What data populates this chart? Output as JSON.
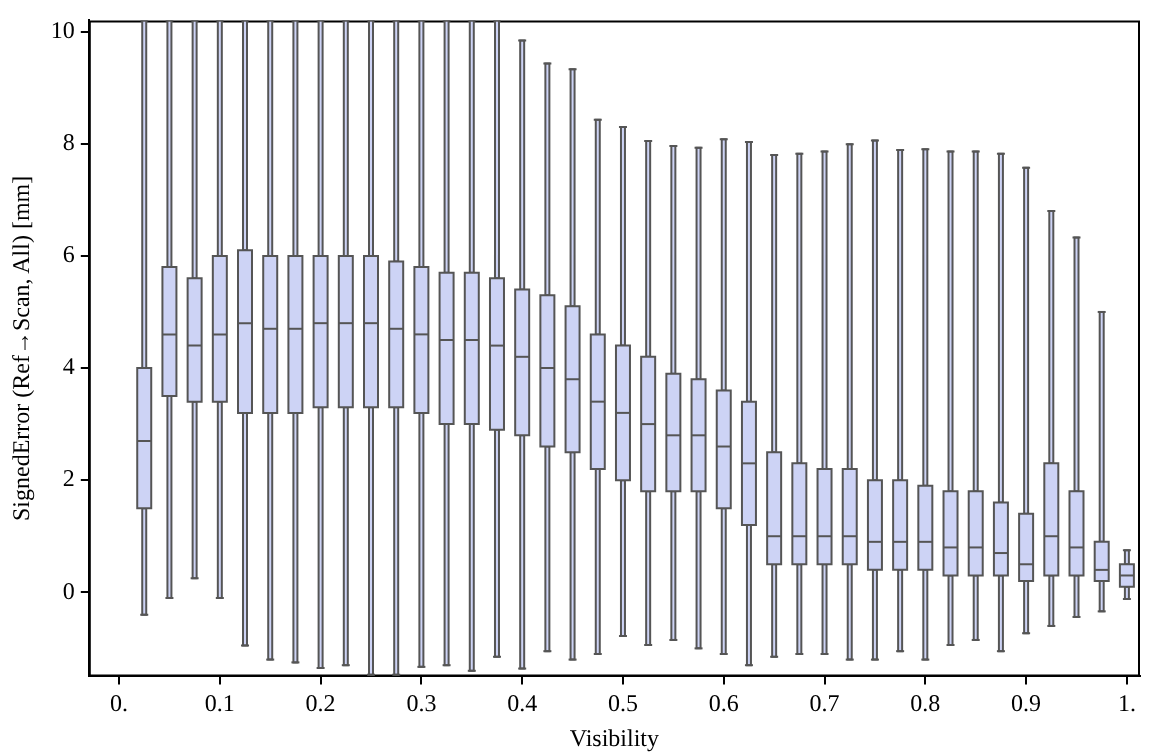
{
  "chart_data": {
    "type": "box",
    "xlabel": "Visibility",
    "ylabel": "SignedError (Ref→Scan, All) [mm]",
    "color": "#cdd3f5",
    "x": [
      0.025,
      0.05,
      0.075,
      0.1,
      0.125,
      0.15,
      0.175,
      0.2,
      0.225,
      0.25,
      0.275,
      0.3,
      0.325,
      0.35,
      0.375,
      0.4,
      0.425,
      0.45,
      0.475,
      0.5,
      0.525,
      0.55,
      0.575,
      0.6,
      0.625,
      0.65,
      0.675,
      0.7,
      0.725,
      0.75,
      0.775,
      0.8,
      0.825,
      0.85,
      0.875,
      0.9,
      0.925,
      0.95,
      0.975,
      1.0
    ],
    "boxes": [
      {
        "low": -0.4,
        "q1": 1.5,
        "median": 2.7,
        "q3": 4.0,
        "high": 10.2
      },
      {
        "low": -0.1,
        "q1": 3.5,
        "median": 4.6,
        "q3": 5.8,
        "high": 10.2
      },
      {
        "low": 0.25,
        "q1": 3.4,
        "median": 4.4,
        "q3": 5.6,
        "high": 10.2
      },
      {
        "low": -0.1,
        "q1": 3.4,
        "median": 4.6,
        "q3": 6.0,
        "high": 10.2
      },
      {
        "low": -0.95,
        "q1": 3.2,
        "median": 4.8,
        "q3": 6.1,
        "high": 10.2
      },
      {
        "low": -1.2,
        "q1": 3.2,
        "median": 4.7,
        "q3": 6.0,
        "high": 10.2
      },
      {
        "low": -1.25,
        "q1": 3.2,
        "median": 4.7,
        "q3": 6.0,
        "high": 10.2
      },
      {
        "low": -1.35,
        "q1": 3.3,
        "median": 4.8,
        "q3": 6.0,
        "high": 10.2
      },
      {
        "low": -1.3,
        "q1": 3.3,
        "median": 4.8,
        "q3": 6.0,
        "high": 10.2
      },
      {
        "low": -1.47,
        "q1": 3.3,
        "median": 4.8,
        "q3": 6.0,
        "high": 10.2
      },
      {
        "low": -1.47,
        "q1": 3.3,
        "median": 4.7,
        "q3": 5.9,
        "high": 10.2
      },
      {
        "low": -1.33,
        "q1": 3.2,
        "median": 4.6,
        "q3": 5.8,
        "high": 10.2
      },
      {
        "low": -1.3,
        "q1": 3.0,
        "median": 4.5,
        "q3": 5.7,
        "high": 10.2
      },
      {
        "low": -1.4,
        "q1": 3.0,
        "median": 4.5,
        "q3": 5.7,
        "high": 10.2
      },
      {
        "low": -1.15,
        "q1": 2.9,
        "median": 4.4,
        "q3": 5.6,
        "high": 10.2
      },
      {
        "low": -1.36,
        "q1": 2.8,
        "median": 4.2,
        "q3": 5.4,
        "high": 9.84
      },
      {
        "low": -1.05,
        "q1": 2.6,
        "median": 4.0,
        "q3": 5.3,
        "high": 9.43
      },
      {
        "low": -1.2,
        "q1": 2.5,
        "median": 3.8,
        "q3": 5.1,
        "high": 9.33
      },
      {
        "low": -1.1,
        "q1": 2.2,
        "median": 3.4,
        "q3": 4.6,
        "high": 8.43
      },
      {
        "low": -0.78,
        "q1": 2.0,
        "median": 3.2,
        "q3": 4.4,
        "high": 8.3
      },
      {
        "low": -0.94,
        "q1": 1.8,
        "median": 3.0,
        "q3": 4.2,
        "high": 8.05
      },
      {
        "low": -0.85,
        "q1": 1.8,
        "median": 2.8,
        "q3": 3.9,
        "high": 7.96
      },
      {
        "low": -1.0,
        "q1": 1.8,
        "median": 2.8,
        "q3": 3.8,
        "high": 7.93
      },
      {
        "low": -1.1,
        "q1": 1.5,
        "median": 2.6,
        "q3": 3.6,
        "high": 8.08
      },
      {
        "low": -1.3,
        "q1": 1.2,
        "median": 2.3,
        "q3": 3.4,
        "high": 8.03
      },
      {
        "low": -1.15,
        "q1": 0.5,
        "median": 1.0,
        "q3": 2.5,
        "high": 7.8
      },
      {
        "low": -1.1,
        "q1": 0.5,
        "median": 1.0,
        "q3": 2.3,
        "high": 7.82
      },
      {
        "low": -1.1,
        "q1": 0.5,
        "median": 1.0,
        "q3": 2.2,
        "high": 7.86
      },
      {
        "low": -1.2,
        "q1": 0.5,
        "median": 1.0,
        "q3": 2.2,
        "high": 7.99
      },
      {
        "low": -1.2,
        "q1": 0.4,
        "median": 0.9,
        "q3": 2.0,
        "high": 8.06
      },
      {
        "low": -1.05,
        "q1": 0.4,
        "median": 0.9,
        "q3": 2.0,
        "high": 7.89
      },
      {
        "low": -1.2,
        "q1": 0.4,
        "median": 0.9,
        "q3": 1.9,
        "high": 7.9
      },
      {
        "low": -0.94,
        "q1": 0.3,
        "median": 0.8,
        "q3": 1.8,
        "high": 7.86
      },
      {
        "low": -0.85,
        "q1": 0.3,
        "median": 0.8,
        "q3": 1.8,
        "high": 7.86
      },
      {
        "low": -1.05,
        "q1": 0.3,
        "median": 0.7,
        "q3": 1.6,
        "high": 7.82
      },
      {
        "low": -0.73,
        "q1": 0.2,
        "median": 0.5,
        "q3": 1.4,
        "high": 7.57
      },
      {
        "low": -0.6,
        "q1": 0.3,
        "median": 1.0,
        "q3": 2.3,
        "high": 6.8
      },
      {
        "low": -0.44,
        "q1": 0.3,
        "median": 0.8,
        "q3": 1.8,
        "high": 6.33
      },
      {
        "low": -0.34,
        "q1": 0.2,
        "median": 0.4,
        "q3": 0.9,
        "high": 5.0
      },
      {
        "low": -0.12,
        "q1": 0.1,
        "median": 0.3,
        "q3": 0.5,
        "high": 0.75
      }
    ],
    "xlim": [
      -0.03,
      1.013
    ],
    "xticks": [
      {
        "value": 0,
        "label": "0."
      },
      0.1,
      0.2,
      0.3,
      0.4,
      0.5,
      0.6,
      0.7,
      0.8,
      0.9,
      {
        "value": 1,
        "label": "1."
      }
    ],
    "ylim": [
      -1.5,
      10.2
    ],
    "yticks": [
      0,
      2,
      4,
      6,
      8,
      10
    ],
    "grid": false,
    "legend": false
  }
}
